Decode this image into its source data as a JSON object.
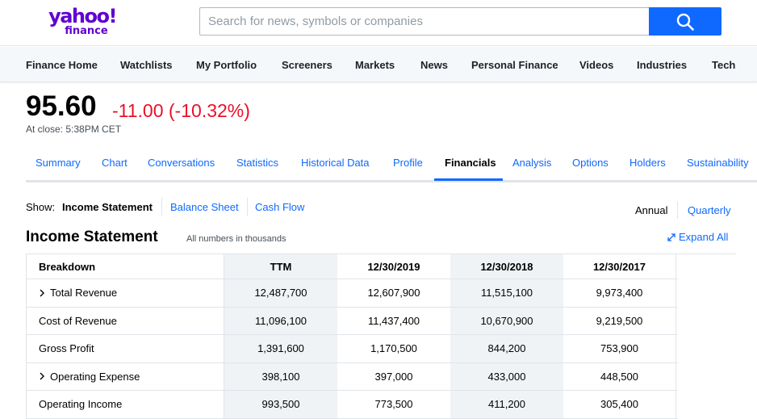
{
  "header": {
    "logo_line1": "yahoo!",
    "logo_line2": "finance",
    "search_placeholder": "Search for news, symbols or companies"
  },
  "nav": [
    "Finance Home",
    "Watchlists",
    "My Portfolio",
    "Screeners",
    "Markets",
    "News",
    "Personal Finance",
    "Videos",
    "Industries",
    "Tech"
  ],
  "quote": {
    "price": "95.60",
    "change": "-11.00 (-10.32%)",
    "close_time": "At close: 5:38PM CET"
  },
  "tabs": [
    "Summary",
    "Chart",
    "Conversations",
    "Statistics",
    "Historical Data",
    "Profile",
    "Financials",
    "Analysis",
    "Options",
    "Holders",
    "Sustainability"
  ],
  "active_tab": "Financials",
  "show": {
    "label": "Show:",
    "items": [
      "Income Statement",
      "Balance Sheet",
      "Cash Flow"
    ],
    "period_annual": "Annual",
    "period_quarterly": "Quarterly"
  },
  "statement": {
    "title": "Income Statement",
    "note": "All numbers in thousands",
    "expand_label": "Expand All"
  },
  "table": {
    "headers": [
      "Breakdown",
      "TTM",
      "12/30/2019",
      "12/30/2018",
      "12/30/2017"
    ],
    "rows": [
      {
        "label": "Total Revenue",
        "expandable": true,
        "values": [
          "12,487,700",
          "12,607,900",
          "11,515,100",
          "9,973,400"
        ]
      },
      {
        "label": "Cost of Revenue",
        "expandable": false,
        "values": [
          "11,096,100",
          "11,437,400",
          "10,670,900",
          "9,219,500"
        ]
      },
      {
        "label": "Gross Profit",
        "expandable": false,
        "values": [
          "1,391,600",
          "1,170,500",
          "844,200",
          "753,900"
        ]
      },
      {
        "label": "Operating Expense",
        "expandable": true,
        "values": [
          "398,100",
          "397,000",
          "433,000",
          "448,500"
        ]
      },
      {
        "label": "Operating Income",
        "expandable": false,
        "values": [
          "993,500",
          "773,500",
          "411,200",
          "305,400"
        ]
      }
    ]
  },
  "colors": {
    "brand": "#6001d2",
    "link": "#0f69ff",
    "negative": "#eb0f29"
  }
}
